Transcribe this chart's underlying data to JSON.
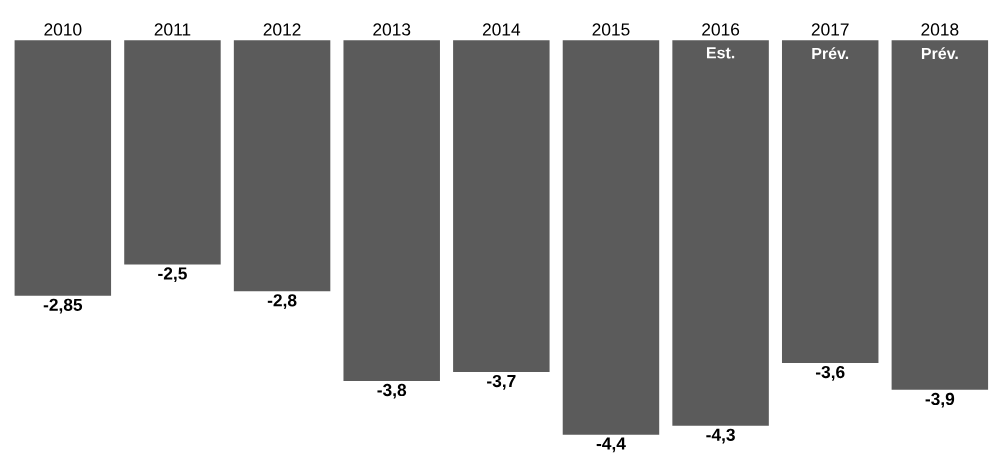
{
  "chart_data": {
    "type": "bar",
    "categories": [
      "2010",
      "2011",
      "2012",
      "2013",
      "2014",
      "2015",
      "2016",
      "2017",
      "2018"
    ],
    "values": [
      -2.85,
      -2.5,
      -2.8,
      -3.8,
      -3.7,
      -4.4,
      -4.3,
      -3.6,
      -3.9
    ],
    "value_labels": [
      "-2,85",
      "-2,5",
      "-2,8",
      "-3,8",
      "-3,7",
      "-4,4",
      "-4,3",
      "-3,6",
      "-3,9"
    ],
    "color": "#5b5b5b",
    "annotations": [
      {
        "text": "Est.",
        "x": "2016",
        "y": 0
      },
      {
        "text": "Prév.",
        "x": "2017",
        "y": 0
      },
      {
        "text": "Prév.",
        "x": "2018",
        "y": 0
      }
    ]
  }
}
